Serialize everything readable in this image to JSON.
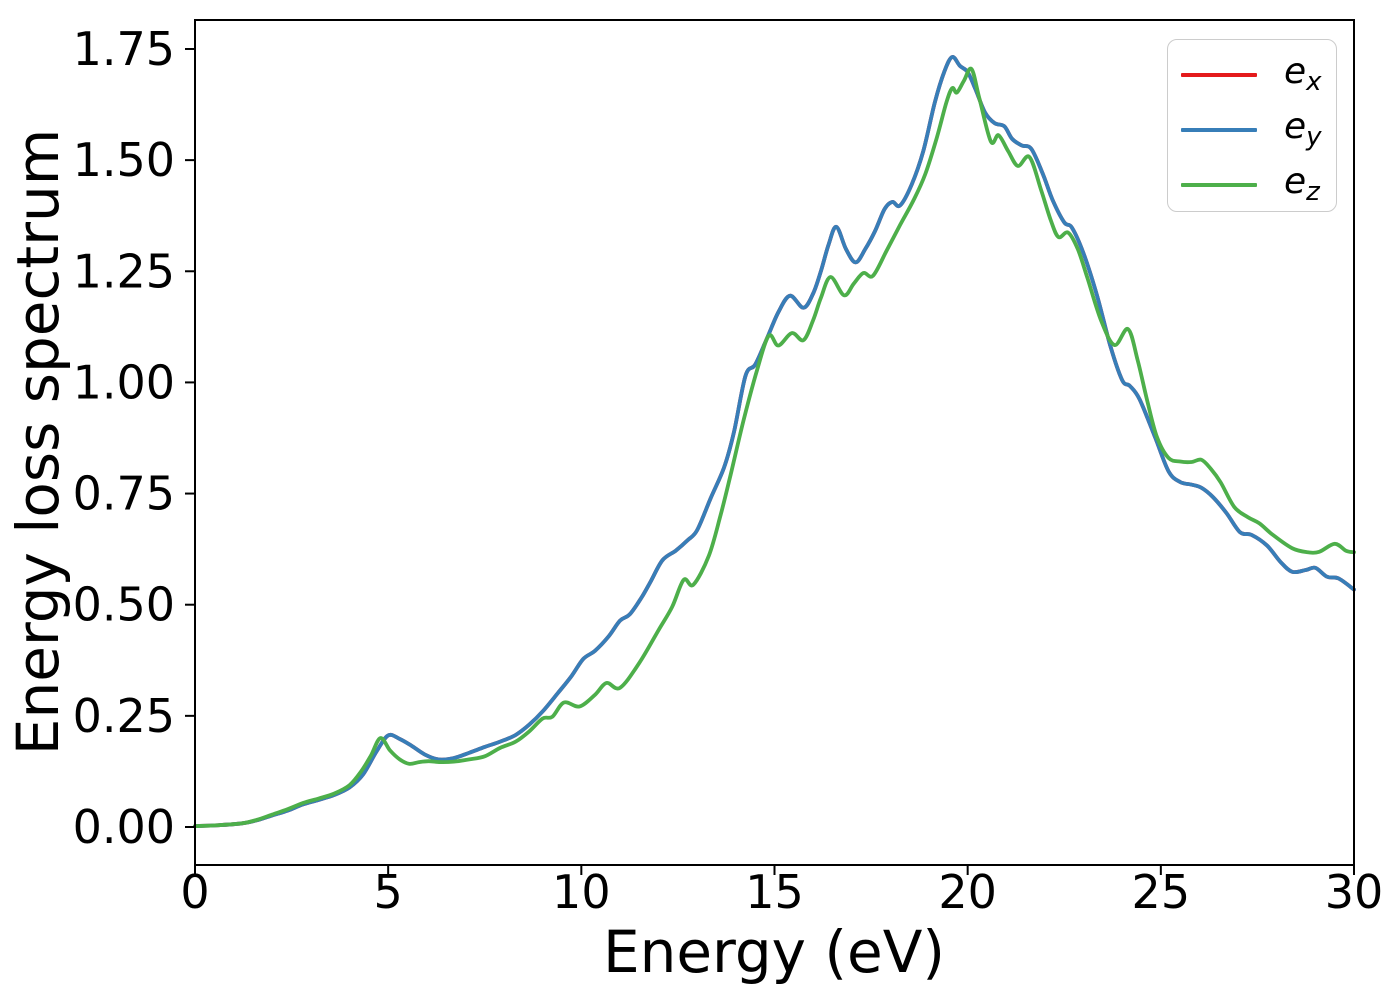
{
  "figure": {
    "xlabel": "Energy (eV)",
    "ylabel": "Energy loss spectrum"
  },
  "legend": {
    "position": "upper right",
    "items": [
      {
        "base": "e",
        "sub": "x",
        "color": "#e41a1c"
      },
      {
        "base": "e",
        "sub": "y",
        "color": "#377eb8"
      },
      {
        "base": "e",
        "sub": "z",
        "color": "#4daf4a"
      }
    ]
  },
  "chart_data": {
    "type": "line",
    "title": "",
    "xlabel": "Energy (eV)",
    "ylabel": "Energy loss spectrum",
    "xlim": [
      0,
      30
    ],
    "ylim": [
      -0.0855,
      1.8152
    ],
    "x_ticks": [
      0,
      5,
      10,
      15,
      20,
      25,
      30
    ],
    "x_tick_labels": [
      "0",
      "5",
      "10",
      "15",
      "20",
      "25",
      "30"
    ],
    "y_ticks": [
      0.0,
      0.25,
      0.5,
      0.75,
      1.0,
      1.25,
      1.5,
      1.75
    ],
    "y_tick_labels": [
      "0.00",
      "0.25",
      "0.50",
      "0.75",
      "1.00",
      "1.25",
      "1.50",
      "1.75"
    ],
    "grid": false,
    "legend_position": "upper right",
    "series": [
      {
        "name": "e_x",
        "color": "#e41a1c",
        "visibility": "hidden beneath e_y (identical curve), visible only in legend",
        "points": [
          [
            0.0,
            0.002
          ],
          [
            0.6,
            0.004
          ],
          [
            1.2,
            0.008
          ],
          [
            1.6,
            0.015
          ],
          [
            2.0,
            0.026
          ],
          [
            2.4,
            0.037
          ],
          [
            2.8,
            0.051
          ],
          [
            3.2,
            0.061
          ],
          [
            3.6,
            0.072
          ],
          [
            4.0,
            0.089
          ],
          [
            4.35,
            0.118
          ],
          [
            4.7,
            0.17
          ],
          [
            5.0,
            0.206
          ],
          [
            5.3,
            0.198
          ],
          [
            5.6,
            0.183
          ],
          [
            5.95,
            0.163
          ],
          [
            6.3,
            0.152
          ],
          [
            6.7,
            0.155
          ],
          [
            7.1,
            0.167
          ],
          [
            7.5,
            0.18
          ],
          [
            7.9,
            0.192
          ],
          [
            8.3,
            0.207
          ],
          [
            8.65,
            0.23
          ],
          [
            9.0,
            0.26
          ],
          [
            9.4,
            0.302
          ],
          [
            9.75,
            0.34
          ],
          [
            10.05,
            0.378
          ],
          [
            10.35,
            0.396
          ],
          [
            10.7,
            0.428
          ],
          [
            11.0,
            0.464
          ],
          [
            11.25,
            0.478
          ],
          [
            11.55,
            0.515
          ],
          [
            11.8,
            0.553
          ],
          [
            12.1,
            0.6
          ],
          [
            12.45,
            0.622
          ],
          [
            12.75,
            0.645
          ],
          [
            13.0,
            0.668
          ],
          [
            13.35,
            0.74
          ],
          [
            13.7,
            0.81
          ],
          [
            13.95,
            0.888
          ],
          [
            14.25,
            1.015
          ],
          [
            14.5,
            1.04
          ],
          [
            14.8,
            1.098
          ],
          [
            15.1,
            1.158
          ],
          [
            15.4,
            1.195
          ],
          [
            15.75,
            1.168
          ],
          [
            16.0,
            1.2
          ],
          [
            16.2,
            1.25
          ],
          [
            16.4,
            1.31
          ],
          [
            16.6,
            1.35
          ],
          [
            16.85,
            1.3
          ],
          [
            17.1,
            1.27
          ],
          [
            17.35,
            1.3
          ],
          [
            17.6,
            1.34
          ],
          [
            17.85,
            1.39
          ],
          [
            18.05,
            1.406
          ],
          [
            18.25,
            1.398
          ],
          [
            18.55,
            1.445
          ],
          [
            18.85,
            1.52
          ],
          [
            19.15,
            1.63
          ],
          [
            19.4,
            1.7
          ],
          [
            19.6,
            1.732
          ],
          [
            19.8,
            1.712
          ],
          [
            20.0,
            1.698
          ],
          [
            20.2,
            1.66
          ],
          [
            20.45,
            1.607
          ],
          [
            20.7,
            1.583
          ],
          [
            20.95,
            1.576
          ],
          [
            21.15,
            1.548
          ],
          [
            21.4,
            1.533
          ],
          [
            21.65,
            1.525
          ],
          [
            21.95,
            1.468
          ],
          [
            22.2,
            1.41
          ],
          [
            22.5,
            1.36
          ],
          [
            22.7,
            1.348
          ],
          [
            23.0,
            1.29
          ],
          [
            23.35,
            1.195
          ],
          [
            23.7,
            1.08
          ],
          [
            24.0,
            1.005
          ],
          [
            24.2,
            0.992
          ],
          [
            24.45,
            0.962
          ],
          [
            24.85,
            0.877
          ],
          [
            25.2,
            0.8
          ],
          [
            25.5,
            0.776
          ],
          [
            25.8,
            0.77
          ],
          [
            26.05,
            0.763
          ],
          [
            26.35,
            0.742
          ],
          [
            26.7,
            0.706
          ],
          [
            27.05,
            0.663
          ],
          [
            27.35,
            0.657
          ],
          [
            27.75,
            0.633
          ],
          [
            28.1,
            0.596
          ],
          [
            28.4,
            0.574
          ],
          [
            28.75,
            0.578
          ],
          [
            29.0,
            0.583
          ],
          [
            29.3,
            0.563
          ],
          [
            29.6,
            0.559
          ],
          [
            30.0,
            0.534
          ]
        ]
      },
      {
        "name": "e_y",
        "color": "#377eb8",
        "visibility": "visible",
        "points": [
          [
            0.0,
            0.002
          ],
          [
            0.6,
            0.004
          ],
          [
            1.2,
            0.008
          ],
          [
            1.6,
            0.015
          ],
          [
            2.0,
            0.026
          ],
          [
            2.4,
            0.037
          ],
          [
            2.8,
            0.051
          ],
          [
            3.2,
            0.061
          ],
          [
            3.6,
            0.072
          ],
          [
            4.0,
            0.089
          ],
          [
            4.35,
            0.118
          ],
          [
            4.7,
            0.17
          ],
          [
            5.0,
            0.206
          ],
          [
            5.3,
            0.198
          ],
          [
            5.6,
            0.183
          ],
          [
            5.95,
            0.163
          ],
          [
            6.3,
            0.152
          ],
          [
            6.7,
            0.155
          ],
          [
            7.1,
            0.167
          ],
          [
            7.5,
            0.18
          ],
          [
            7.9,
            0.192
          ],
          [
            8.3,
            0.207
          ],
          [
            8.65,
            0.23
          ],
          [
            9.0,
            0.26
          ],
          [
            9.4,
            0.302
          ],
          [
            9.75,
            0.34
          ],
          [
            10.05,
            0.378
          ],
          [
            10.35,
            0.396
          ],
          [
            10.7,
            0.428
          ],
          [
            11.0,
            0.464
          ],
          [
            11.25,
            0.478
          ],
          [
            11.55,
            0.515
          ],
          [
            11.8,
            0.553
          ],
          [
            12.1,
            0.6
          ],
          [
            12.45,
            0.622
          ],
          [
            12.75,
            0.645
          ],
          [
            13.0,
            0.668
          ],
          [
            13.35,
            0.74
          ],
          [
            13.7,
            0.81
          ],
          [
            13.95,
            0.888
          ],
          [
            14.25,
            1.015
          ],
          [
            14.5,
            1.04
          ],
          [
            14.8,
            1.098
          ],
          [
            15.1,
            1.158
          ],
          [
            15.4,
            1.195
          ],
          [
            15.75,
            1.168
          ],
          [
            16.0,
            1.2
          ],
          [
            16.2,
            1.25
          ],
          [
            16.4,
            1.31
          ],
          [
            16.6,
            1.35
          ],
          [
            16.85,
            1.3
          ],
          [
            17.1,
            1.27
          ],
          [
            17.35,
            1.3
          ],
          [
            17.6,
            1.34
          ],
          [
            17.85,
            1.39
          ],
          [
            18.05,
            1.406
          ],
          [
            18.25,
            1.398
          ],
          [
            18.55,
            1.445
          ],
          [
            18.85,
            1.52
          ],
          [
            19.15,
            1.63
          ],
          [
            19.4,
            1.7
          ],
          [
            19.6,
            1.732
          ],
          [
            19.8,
            1.712
          ],
          [
            20.0,
            1.698
          ],
          [
            20.2,
            1.66
          ],
          [
            20.45,
            1.607
          ],
          [
            20.7,
            1.583
          ],
          [
            20.95,
            1.576
          ],
          [
            21.15,
            1.548
          ],
          [
            21.4,
            1.533
          ],
          [
            21.65,
            1.525
          ],
          [
            21.95,
            1.468
          ],
          [
            22.2,
            1.41
          ],
          [
            22.5,
            1.36
          ],
          [
            22.7,
            1.348
          ],
          [
            23.0,
            1.29
          ],
          [
            23.35,
            1.195
          ],
          [
            23.7,
            1.08
          ],
          [
            24.0,
            1.005
          ],
          [
            24.2,
            0.992
          ],
          [
            24.45,
            0.962
          ],
          [
            24.85,
            0.877
          ],
          [
            25.2,
            0.8
          ],
          [
            25.5,
            0.776
          ],
          [
            25.8,
            0.77
          ],
          [
            26.05,
            0.763
          ],
          [
            26.35,
            0.742
          ],
          [
            26.7,
            0.706
          ],
          [
            27.05,
            0.663
          ],
          [
            27.35,
            0.657
          ],
          [
            27.75,
            0.633
          ],
          [
            28.1,
            0.596
          ],
          [
            28.4,
            0.574
          ],
          [
            28.75,
            0.578
          ],
          [
            29.0,
            0.583
          ],
          [
            29.3,
            0.563
          ],
          [
            29.6,
            0.559
          ],
          [
            30.0,
            0.534
          ]
        ]
      },
      {
        "name": "e_z",
        "color": "#4daf4a",
        "visibility": "visible",
        "points": [
          [
            0.0,
            0.002
          ],
          [
            0.6,
            0.004
          ],
          [
            1.2,
            0.008
          ],
          [
            1.6,
            0.016
          ],
          [
            2.0,
            0.028
          ],
          [
            2.4,
            0.04
          ],
          [
            2.8,
            0.054
          ],
          [
            3.2,
            0.064
          ],
          [
            3.6,
            0.075
          ],
          [
            4.0,
            0.094
          ],
          [
            4.3,
            0.125
          ],
          [
            4.55,
            0.16
          ],
          [
            4.8,
            0.2
          ],
          [
            5.05,
            0.172
          ],
          [
            5.3,
            0.152
          ],
          [
            5.55,
            0.142
          ],
          [
            5.8,
            0.146
          ],
          [
            6.05,
            0.148
          ],
          [
            6.35,
            0.146
          ],
          [
            6.7,
            0.147
          ],
          [
            7.1,
            0.152
          ],
          [
            7.5,
            0.159
          ],
          [
            7.9,
            0.178
          ],
          [
            8.3,
            0.192
          ],
          [
            8.65,
            0.215
          ],
          [
            9.0,
            0.244
          ],
          [
            9.25,
            0.248
          ],
          [
            9.55,
            0.28
          ],
          [
            9.95,
            0.271
          ],
          [
            10.35,
            0.297
          ],
          [
            10.65,
            0.324
          ],
          [
            11.0,
            0.313
          ],
          [
            11.5,
            0.369
          ],
          [
            12.0,
            0.443
          ],
          [
            12.35,
            0.495
          ],
          [
            12.65,
            0.556
          ],
          [
            12.9,
            0.545
          ],
          [
            13.3,
            0.61
          ],
          [
            13.6,
            0.7
          ],
          [
            13.85,
            0.787
          ],
          [
            14.2,
            0.915
          ],
          [
            14.55,
            1.028
          ],
          [
            14.85,
            1.105
          ],
          [
            15.1,
            1.083
          ],
          [
            15.45,
            1.111
          ],
          [
            15.75,
            1.095
          ],
          [
            16.0,
            1.14
          ],
          [
            16.2,
            1.19
          ],
          [
            16.45,
            1.237
          ],
          [
            16.8,
            1.196
          ],
          [
            17.05,
            1.222
          ],
          [
            17.3,
            1.246
          ],
          [
            17.55,
            1.24
          ],
          [
            17.9,
            1.296
          ],
          [
            18.25,
            1.354
          ],
          [
            18.6,
            1.41
          ],
          [
            18.9,
            1.468
          ],
          [
            19.2,
            1.55
          ],
          [
            19.45,
            1.63
          ],
          [
            19.6,
            1.662
          ],
          [
            19.72,
            1.652
          ],
          [
            19.9,
            1.678
          ],
          [
            20.1,
            1.705
          ],
          [
            20.3,
            1.64
          ],
          [
            20.6,
            1.542
          ],
          [
            20.8,
            1.556
          ],
          [
            21.05,
            1.52
          ],
          [
            21.3,
            1.487
          ],
          [
            21.6,
            1.507
          ],
          [
            21.9,
            1.433
          ],
          [
            22.15,
            1.365
          ],
          [
            22.35,
            1.327
          ],
          [
            22.6,
            1.337
          ],
          [
            22.85,
            1.3
          ],
          [
            23.1,
            1.235
          ],
          [
            23.45,
            1.14
          ],
          [
            23.8,
            1.084
          ],
          [
            24.15,
            1.12
          ],
          [
            24.4,
            1.05
          ],
          [
            24.65,
            0.958
          ],
          [
            24.9,
            0.877
          ],
          [
            25.2,
            0.83
          ],
          [
            25.5,
            0.822
          ],
          [
            25.8,
            0.821
          ],
          [
            26.05,
            0.826
          ],
          [
            26.3,
            0.805
          ],
          [
            26.55,
            0.775
          ],
          [
            26.9,
            0.72
          ],
          [
            27.25,
            0.697
          ],
          [
            27.55,
            0.683
          ],
          [
            27.9,
            0.657
          ],
          [
            28.4,
            0.627
          ],
          [
            28.8,
            0.618
          ],
          [
            29.1,
            0.619
          ],
          [
            29.5,
            0.637
          ],
          [
            29.8,
            0.621
          ],
          [
            30.0,
            0.618
          ]
        ]
      }
    ]
  }
}
